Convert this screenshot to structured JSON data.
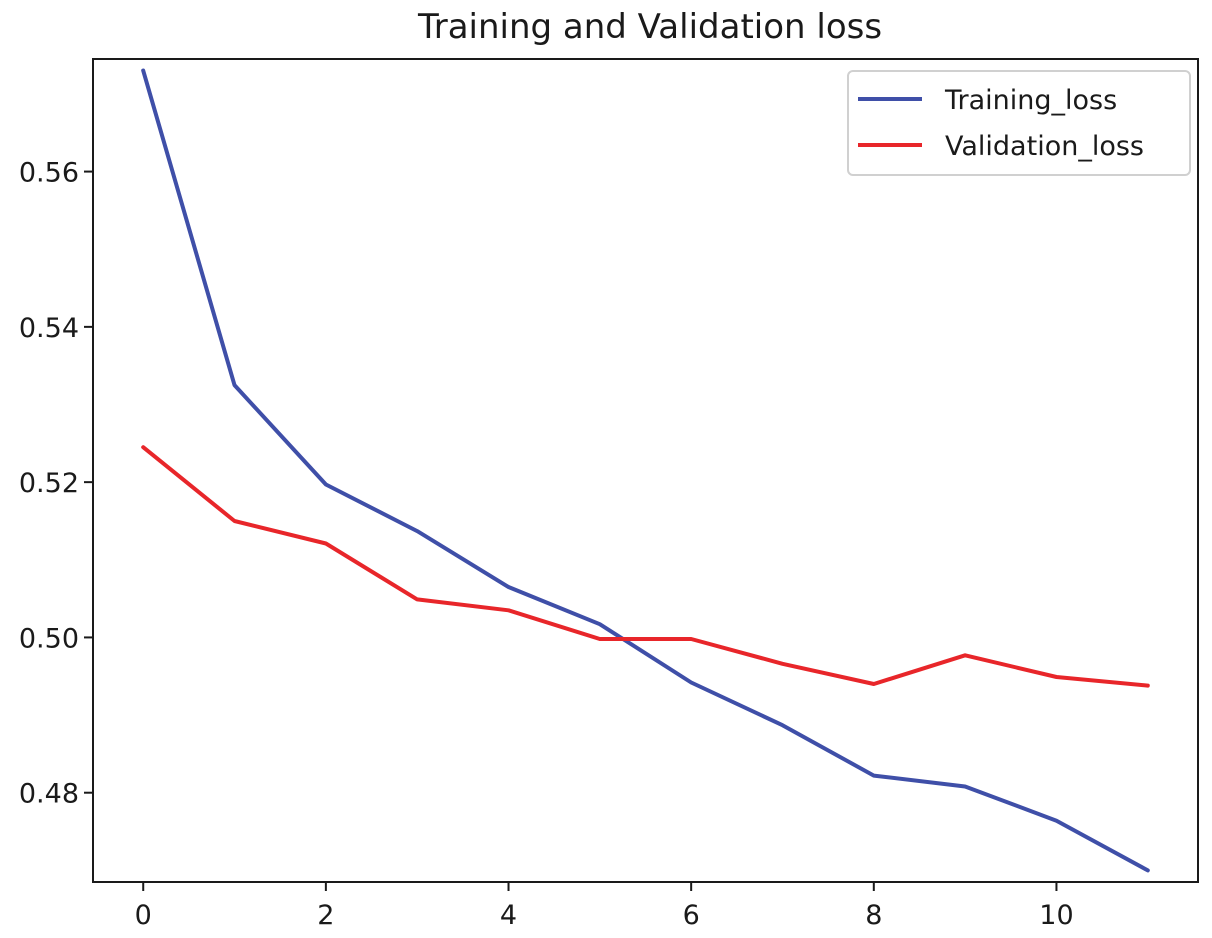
{
  "chart_data": {
    "type": "line",
    "title": "Training and Validation loss",
    "xlabel": "",
    "ylabel": "",
    "x": [
      0,
      1,
      2,
      3,
      4,
      5,
      6,
      7,
      8,
      9,
      10,
      11
    ],
    "xlim": [
      -0.55,
      11.55
    ],
    "ylim": [
      0.4685,
      0.5745
    ],
    "x_ticks": [
      0,
      2,
      4,
      6,
      8,
      10
    ],
    "x_tick_labels": [
      "0",
      "2",
      "4",
      "6",
      "8",
      "10"
    ],
    "y_ticks": [
      0.48,
      0.5,
      0.52,
      0.54,
      0.56
    ],
    "y_tick_labels": [
      "0.48",
      "0.50",
      "0.52",
      "0.54",
      "0.56"
    ],
    "grid": false,
    "legend_position": "top-right",
    "series": [
      {
        "name": "Training_loss",
        "color": "#3f4fa8",
        "values": [
          0.573,
          0.5325,
          0.5197,
          0.5137,
          0.5065,
          0.5017,
          0.4942,
          0.4887,
          0.4822,
          0.4808,
          0.4764,
          0.47
        ]
      },
      {
        "name": "Validation_loss",
        "color": "#e8262a",
        "values": [
          0.5245,
          0.515,
          0.5121,
          0.5049,
          0.5035,
          0.4998,
          0.4998,
          0.4966,
          0.494,
          0.4977,
          0.4949,
          0.4938
        ]
      }
    ]
  }
}
